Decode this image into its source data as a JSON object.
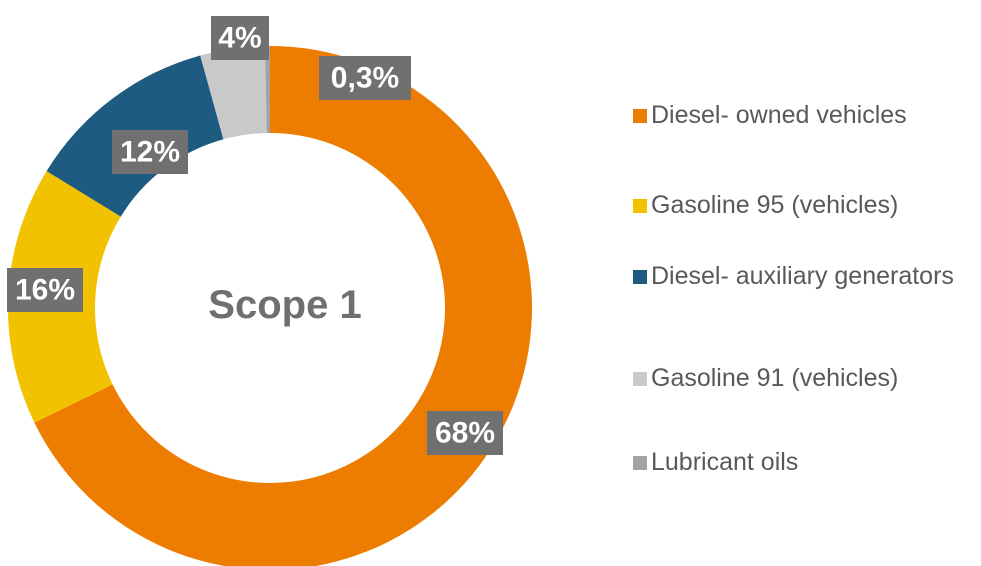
{
  "chart_data": {
    "type": "donut",
    "title": "Scope 1",
    "categories": [
      "Diesel- owned vehicles",
      "Gasoline 95 (vehicles)",
      "Diesel- auxiliary generators",
      "Gasoline 91 (vehicles)",
      "Lubricant oils"
    ],
    "values": [
      68,
      16,
      12,
      4,
      0.3
    ],
    "value_labels": [
      "68%",
      "16%",
      "12%",
      "4%",
      "0,3%"
    ],
    "colors": [
      "#ed7d00",
      "#f2c200",
      "#1d5b80",
      "#c9c9c9",
      "#a3a3a3"
    ],
    "legend": "right"
  }
}
